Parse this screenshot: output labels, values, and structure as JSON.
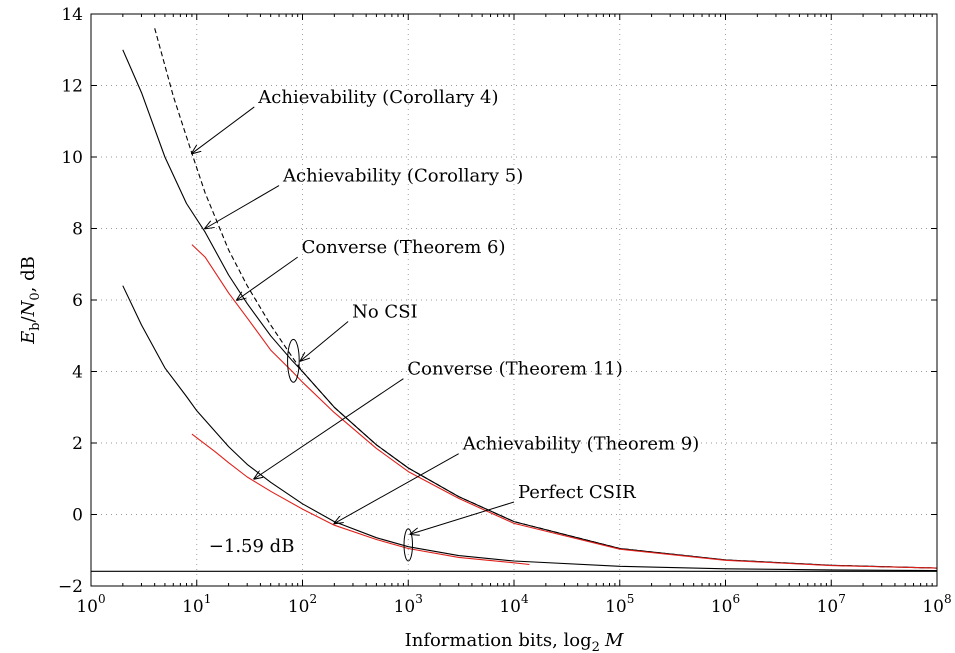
{
  "chart_data": {
    "type": "line",
    "xlabel": "Information bits, log",
    "xlabel_sub": "2",
    "xlabel_var": "M",
    "ylabel_parts": {
      "E": "E",
      "b": "b",
      "slash": "/",
      "N": "N",
      "zero": "0",
      "unit": ", dB"
    },
    "x_scale": "log",
    "xlim": [
      1,
      100000000
    ],
    "ylim": [
      -2,
      14
    ],
    "grid": true,
    "x_ticks": [
      {
        "value": 1,
        "base": "10",
        "exp": "0"
      },
      {
        "value": 10,
        "base": "10",
        "exp": "1"
      },
      {
        "value": 100,
        "base": "10",
        "exp": "2"
      },
      {
        "value": 1000,
        "base": "10",
        "exp": "3"
      },
      {
        "value": 10000,
        "base": "10",
        "exp": "4"
      },
      {
        "value": 100000,
        "base": "10",
        "exp": "5"
      },
      {
        "value": 1000000,
        "base": "10",
        "exp": "6"
      },
      {
        "value": 10000000,
        "base": "10",
        "exp": "7"
      },
      {
        "value": 100000000,
        "base": "10",
        "exp": "8"
      }
    ],
    "y_ticks": [
      {
        "value": -2,
        "label": "−2"
      },
      {
        "value": 0,
        "label": "0"
      },
      {
        "value": 2,
        "label": "2"
      },
      {
        "value": 4,
        "label": "4"
      },
      {
        "value": 6,
        "label": "6"
      },
      {
        "value": 8,
        "label": "8"
      },
      {
        "value": 10,
        "label": "10"
      },
      {
        "value": 12,
        "label": "12"
      },
      {
        "value": 14,
        "label": "14"
      }
    ],
    "series": [
      {
        "id": "achievability-corollary-4",
        "color": "#000000",
        "dashed": true,
        "x": [
          4,
          6,
          9,
          12,
          20,
          30,
          50,
          80,
          100,
          200,
          500,
          1000,
          3000,
          10000,
          100000,
          1000000,
          10000000,
          100000000
        ],
        "y": [
          13.6,
          11.7,
          10.1,
          9.0,
          7.4,
          6.4,
          5.3,
          4.4,
          4.0,
          3.0,
          1.95,
          1.3,
          0.5,
          -0.2,
          -0.95,
          -1.27,
          -1.42,
          -1.5
        ]
      },
      {
        "id": "achievability-corollary-5",
        "color": "#000000",
        "dashed": false,
        "x": [
          2,
          3,
          5,
          8,
          12,
          20,
          30,
          50,
          80,
          100,
          200,
          500,
          1000,
          3000,
          10000,
          100000,
          1000000,
          10000000,
          100000000
        ],
        "y": [
          13.0,
          11.8,
          10.0,
          8.7,
          7.9,
          6.7,
          5.9,
          5.0,
          4.3,
          4.0,
          3.0,
          1.95,
          1.3,
          0.5,
          -0.2,
          -0.95,
          -1.27,
          -1.42,
          -1.5
        ]
      },
      {
        "id": "converse-theorem-6",
        "color": "#e0201b",
        "dashed": false,
        "x": [
          9,
          12,
          20,
          30,
          50,
          80,
          100,
          200,
          500,
          1000,
          3000,
          10000,
          100000,
          1000000,
          10000000,
          100000000
        ],
        "y": [
          7.55,
          7.2,
          6.2,
          5.5,
          4.6,
          4.0,
          3.7,
          2.85,
          1.85,
          1.2,
          0.45,
          -0.25,
          -0.97,
          -1.28,
          -1.43,
          -1.5
        ]
      },
      {
        "id": "achievability-theorem-9",
        "color": "#000000",
        "dashed": false,
        "x": [
          2,
          3,
          5,
          8,
          10,
          20,
          30,
          50,
          100,
          200,
          500,
          1000,
          3000,
          10000,
          100000,
          1000000,
          10000000,
          100000000
        ],
        "y": [
          6.4,
          5.3,
          4.1,
          3.3,
          2.9,
          1.9,
          1.4,
          0.9,
          0.3,
          -0.2,
          -0.65,
          -0.9,
          -1.15,
          -1.3,
          -1.45,
          -1.52,
          -1.55,
          -1.57
        ]
      },
      {
        "id": "converse-theorem-11",
        "color": "#e0201b",
        "dashed": false,
        "x": [
          9,
          15,
          20,
          30,
          50,
          100,
          200,
          500,
          1000,
          3000,
          10000,
          14000
        ],
        "y": [
          2.25,
          1.75,
          1.45,
          1.05,
          0.65,
          0.15,
          -0.3,
          -0.7,
          -0.95,
          -1.2,
          -1.35,
          -1.4
        ]
      },
      {
        "id": "limit-line",
        "color": "#000000",
        "dashed": false,
        "x": [
          1,
          100000000
        ],
        "y": [
          -1.59,
          -1.59
        ]
      }
    ],
    "hline_label": {
      "text": "−1.59 dB",
      "x": 13,
      "y": -1.05
    },
    "annotations": [
      {
        "id": "ann-corollary-4",
        "text": "Achievability (Corollary 4)",
        "tip": [
          9,
          10.1
        ],
        "tail": [
          35,
          11.4
        ]
      },
      {
        "id": "ann-corollary-5",
        "text": "Achievability (Corollary 5)",
        "tip": [
          12,
          8.0
        ],
        "tail": [
          60,
          9.2
        ]
      },
      {
        "id": "ann-theorem-6",
        "text": "Converse (Theorem 6)",
        "tip": [
          24,
          6.0
        ],
        "tail": [
          90,
          7.2
        ]
      },
      {
        "id": "ann-no-csi",
        "text": "No CSI",
        "tip": [
          96,
          4.3
        ],
        "tail": [
          270,
          5.4
        ]
      },
      {
        "id": "ann-theorem-11",
        "text": "Converse (Theorem 11)",
        "tip": [
          35,
          1.0
        ],
        "tail": [
          900,
          3.8
        ]
      },
      {
        "id": "ann-theorem-9",
        "text": "Achievability (Theorem 9)",
        "tip": [
          200,
          -0.25
        ],
        "tail": [
          3000,
          1.7
        ]
      },
      {
        "id": "ann-perfect-csir",
        "text": "Perfect CSIR",
        "tip": [
          1050,
          -0.55
        ],
        "tail": [
          10000,
          0.35
        ]
      }
    ],
    "ellipses": [
      {
        "id": "ellipse-no-csi",
        "cx": 82,
        "cy": 4.3,
        "rx_decades": 0.055,
        "ry": 0.6
      },
      {
        "id": "ellipse-perfect-csir",
        "cx": 1000,
        "cy": -0.85,
        "rx_decades": 0.04,
        "ry": 0.45
      }
    ]
  }
}
